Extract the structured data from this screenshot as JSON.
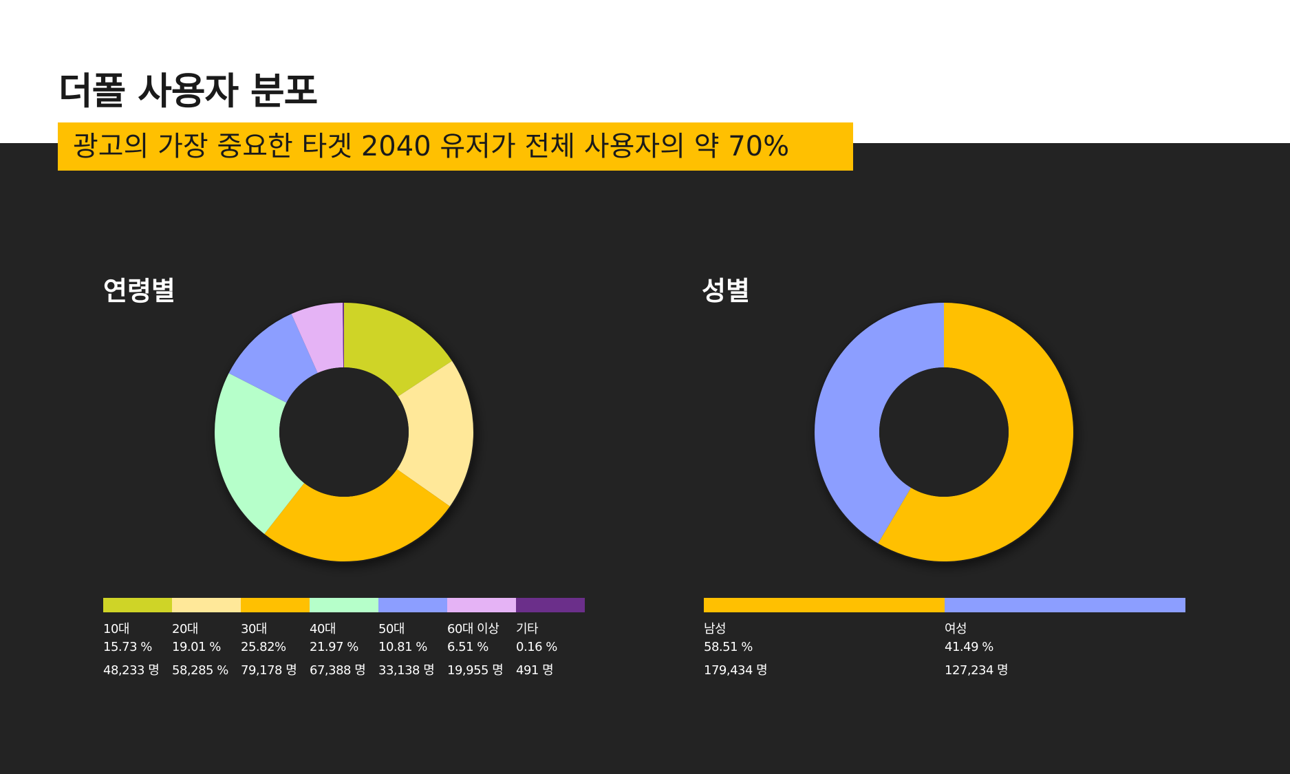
{
  "header": {
    "title": "더폴 사용자 분포",
    "subtitle": "광고의 가장 중요한 타겟 2040 유저가 전체 사용자의 약 70%"
  },
  "chart_data": [
    {
      "type": "pie",
      "title": "연령별",
      "categories": [
        "10대",
        "20대",
        "30대",
        "40대",
        "50대",
        "60대 이상",
        "기타"
      ],
      "values": [
        15.73,
        19.01,
        25.82,
        21.97,
        10.81,
        6.51,
        0.16
      ],
      "value_labels": [
        "15.73 %",
        "19.01 %",
        "25.82%",
        "21.97 %",
        "10.81 %",
        "6.51 %",
        "0.16 %"
      ],
      "counts": [
        "48,233 명",
        "58,285 %",
        "79,178 명",
        "67,388 명",
        "33,138 명",
        "19,955 명",
        "491 명"
      ],
      "colors": [
        "#cfd427",
        "#ffe899",
        "#ffc001",
        "#b6ffca",
        "#8c9eff",
        "#e5b3f5",
        "#6b2f8a"
      ]
    },
    {
      "type": "pie",
      "title": "성별",
      "categories": [
        "남성",
        "여성"
      ],
      "values": [
        58.51,
        41.49
      ],
      "value_labels": [
        "58.51 %",
        "41.49 %"
      ],
      "counts": [
        "179,434 명",
        "127,234 명"
      ],
      "colors": [
        "#ffc001",
        "#8c9eff"
      ]
    }
  ]
}
